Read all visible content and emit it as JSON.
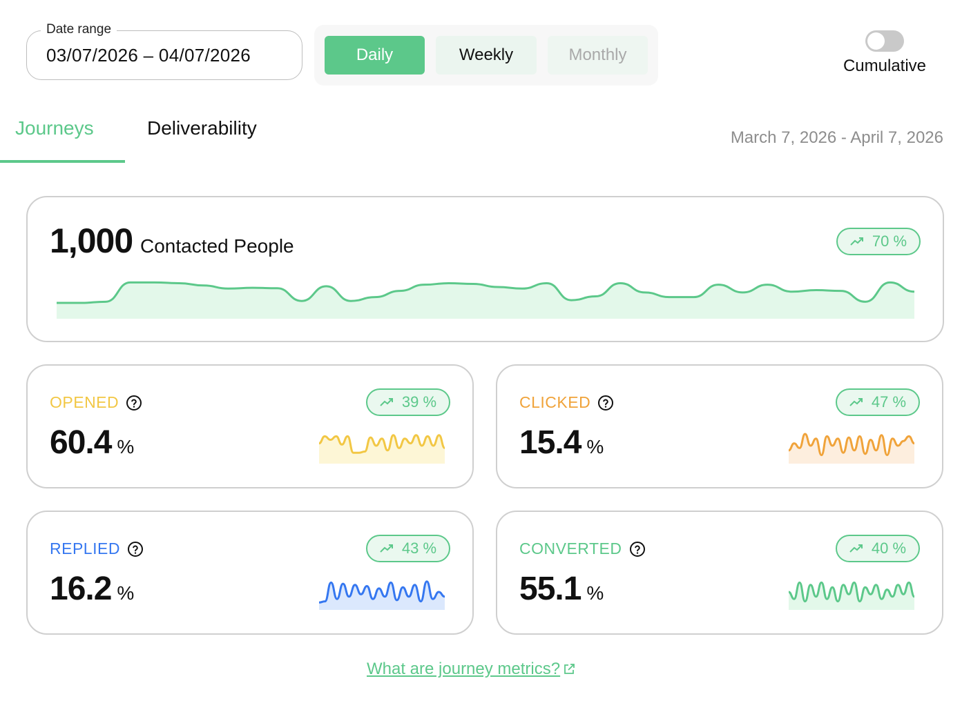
{
  "date_range": {
    "label": "Date range",
    "value": "03/07/2026 – 04/07/2026"
  },
  "period": {
    "daily": "Daily",
    "weekly": "Weekly",
    "monthly": "Monthly",
    "selected": "Daily"
  },
  "cumulative": {
    "label": "Cumulative",
    "enabled": false
  },
  "tabs": {
    "journeys": "Journeys",
    "deliverability": "Deliverability",
    "active": "Journeys"
  },
  "range_text": "March 7, 2026 - April 7, 2026",
  "main_card": {
    "value": "1,000",
    "label": "Contacted People",
    "trend": "70 %",
    "sparkline": [
      0.25,
      0.25,
      0.28,
      0.78,
      0.78,
      0.76,
      0.7,
      0.62,
      0.64,
      0.63,
      0.3,
      0.68,
      0.3,
      0.4,
      0.56,
      0.72,
      0.76,
      0.74,
      0.66,
      0.62,
      0.76,
      0.32,
      0.42,
      0.76,
      0.52,
      0.4,
      0.4,
      0.72,
      0.52,
      0.72,
      0.54,
      0.58,
      0.56,
      0.28,
      0.78,
      0.54
    ]
  },
  "metrics": {
    "opened": {
      "title": "OPENED",
      "value": "60.4",
      "unit": "%",
      "trend": "39 %",
      "color": "#f2c744",
      "sparkline": [
        0.6,
        0.9,
        0.75,
        0.9,
        0.55,
        0.9,
        0.2,
        0.2,
        0.25,
        0.85,
        0.5,
        0.8,
        0.3,
        0.95,
        0.4,
        0.8,
        0.6,
        0.95,
        0.5,
        0.9,
        0.5,
        0.95,
        0.4
      ]
    },
    "clicked": {
      "title": "CLICKED",
      "value": "15.4",
      "unit": "%",
      "trend": "47 %",
      "color": "#f0a33a",
      "sparkline": [
        0.3,
        0.6,
        0.4,
        1.0,
        0.5,
        0.8,
        0.1,
        0.9,
        0.5,
        0.8,
        0.2,
        0.85,
        0.3,
        0.9,
        0.15,
        0.75,
        0.3,
        0.95,
        0.1,
        0.8,
        0.5,
        0.7,
        0.9,
        0.6
      ]
    },
    "replied": {
      "title": "REPLIED",
      "value": "16.2",
      "unit": "%",
      "trend": "43 %",
      "color": "#3577f0",
      "sparkline": [
        0.05,
        0.1,
        0.9,
        0.2,
        0.85,
        0.3,
        0.8,
        0.4,
        0.75,
        0.2,
        0.65,
        0.3,
        0.9,
        0.15,
        0.7,
        0.3,
        0.8,
        0.1,
        0.95,
        0.2,
        0.5,
        0.3
      ]
    },
    "converted": {
      "title": "CONVERTED",
      "value": "55.1",
      "unit": "%",
      "trend": "40 %",
      "color": "#5cc88a",
      "sparkline": [
        0.5,
        0.2,
        0.9,
        0.1,
        0.8,
        0.3,
        0.9,
        0.2,
        0.7,
        0.1,
        0.8,
        0.4,
        0.9,
        0.1,
        0.7,
        0.4,
        0.8,
        0.2,
        0.6,
        0.3,
        0.8,
        0.4,
        0.9,
        0.3
      ]
    }
  },
  "footer_link": "What are journey metrics?"
}
